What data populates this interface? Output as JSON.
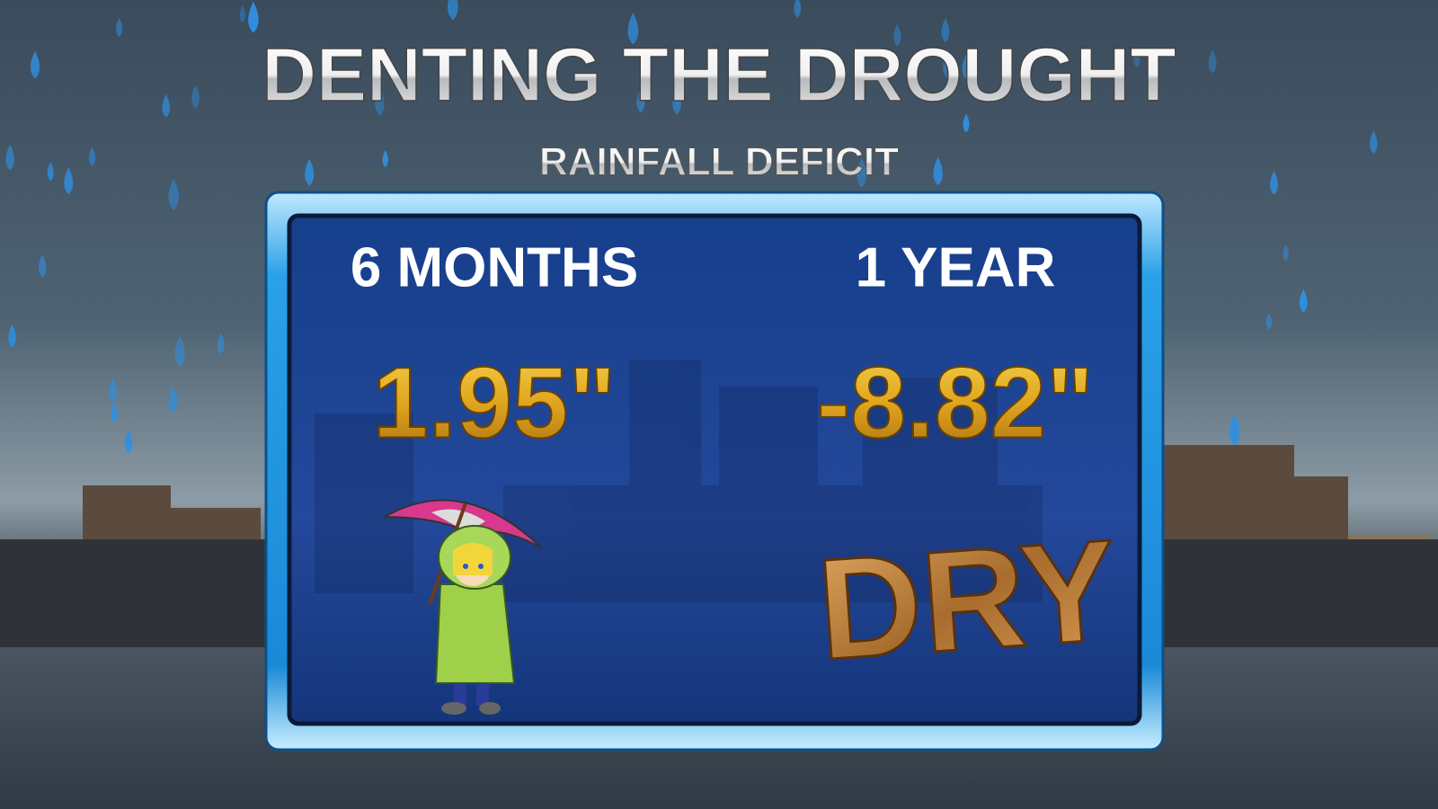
{
  "header": {
    "title": "DENTING THE DROUGHT",
    "subtitle": "RAINFALL DEFICIT"
  },
  "panel": {
    "columns": [
      {
        "label": "6 MONTHS",
        "value": "1.95\""
      },
      {
        "label": "1 YEAR",
        "value": "-8.82\""
      }
    ],
    "stamp": "DRY"
  }
}
